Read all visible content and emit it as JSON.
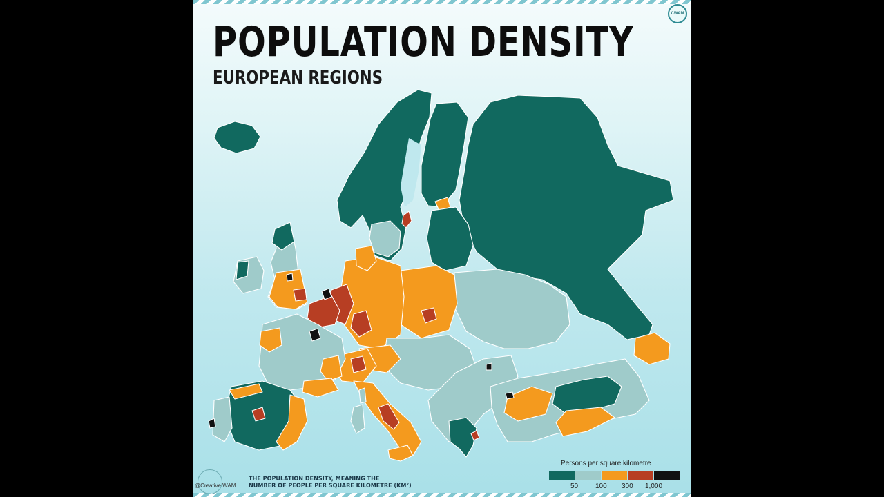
{
  "title": "POPULATION DENSITY",
  "subtitle": "EUROPEAN REGIONS",
  "badge": "CWAM",
  "legend": {
    "title": "Persons per square kilometre",
    "classes": [
      {
        "color": "#11695f"
      },
      {
        "color": "#9fcbca"
      },
      {
        "color": "#f49a1e"
      },
      {
        "color": "#b73e23"
      },
      {
        "color": "#111111"
      }
    ],
    "ticks": [
      "50",
      "100",
      "300",
      "1,000"
    ]
  },
  "note": {
    "line1": "THE POPULATION DENSITY, MEANING THE",
    "line2": "NUMBER OF PEOPLE PER SQUARE KILOMETRE (KM²)"
  },
  "credit": "@Creative.WAM"
}
